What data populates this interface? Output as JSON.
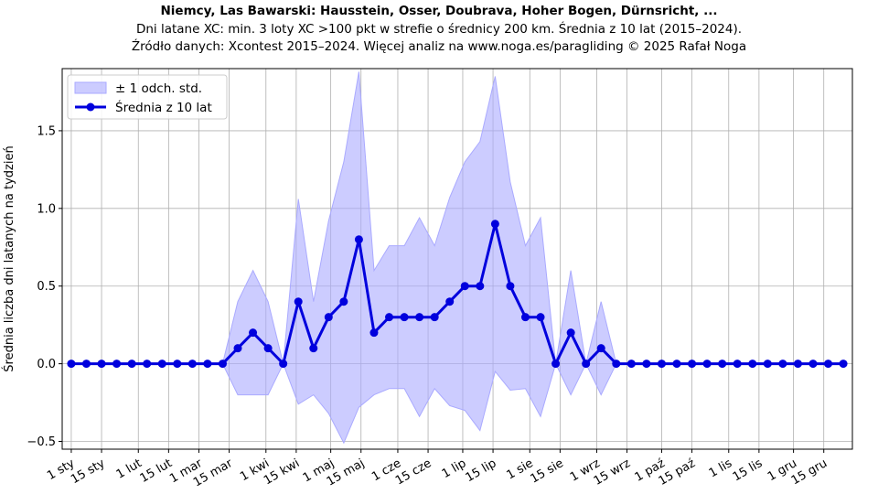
{
  "title_line1": "Niemcy, Las Bawarski: Hausstein, Osser, Doubrava, Hoher Bogen, Dürnsricht, ...",
  "title_line2": "Dni latane XC: min. 3 loty XC >100 pkt w strefie o średnicy 200 km. Średnia z 10 lat (2015–2024).",
  "title_line3": "Źródło danych: Xcontest 2015–2024. Więcej analiz na www.noga.es/paragliding © 2025 Rafał Noga",
  "colors": {
    "line": "#0000dd",
    "band": "#aaaaff",
    "grid": "#b0b0b0"
  },
  "chart_data": {
    "type": "line",
    "ylabel": "Średnia liczba dni latanych na tydzień",
    "xlabel": "",
    "x_unit": "week of year",
    "x_range": [
      1,
      52
    ],
    "ylim": [
      -0.55,
      1.9
    ],
    "yticks": [
      -0.5,
      0.0,
      0.5,
      1.0,
      1.5
    ],
    "ytick_labels": [
      "−0.5",
      "0.0",
      "0.5",
      "1.0",
      "1.5"
    ],
    "xtick_labels": [
      "1 sty",
      "15 sty",
      "1 lut",
      "15 lut",
      "1 mar",
      "15 mar",
      "1 kwi",
      "15 kwi",
      "1 maj",
      "15 maj",
      "1 cze",
      "15 cze",
      "1 lip",
      "15 lip",
      "1 sie",
      "15 sie",
      "1 wrz",
      "15 wrz",
      "1 paź",
      "15 paź",
      "1 lis",
      "15 lis",
      "1 gru",
      "15 gru"
    ],
    "xtick_weeks": [
      1,
      3,
      5.43,
      7.43,
      9.43,
      11.43,
      13.86,
      15.86,
      18.14,
      20.14,
      22.57,
      24.57,
      26.86,
      28.86,
      31.29,
      33.29,
      35.71,
      37.71,
      40.0,
      42.0,
      44.43,
      46.43,
      48.71,
      50.71
    ],
    "grid": true,
    "legend_position": "top-left",
    "series": [
      {
        "name": "Średnia z 10 lat",
        "x": [
          1,
          2,
          3,
          4,
          5,
          6,
          7,
          8,
          9,
          10,
          11,
          12,
          13,
          14,
          15,
          16,
          17,
          18,
          19,
          20,
          21,
          22,
          23,
          24,
          25,
          26,
          27,
          28,
          29,
          30,
          31,
          32,
          33,
          34,
          35,
          36,
          37,
          38,
          39,
          40,
          41,
          42,
          43,
          44,
          45,
          46,
          47,
          48,
          49,
          50,
          51,
          52
        ],
        "values": [
          0,
          0,
          0,
          0,
          0,
          0,
          0,
          0,
          0,
          0,
          0,
          0.1,
          0.2,
          0.1,
          0,
          0.4,
          0.1,
          0.3,
          0.4,
          0.8,
          0.2,
          0.3,
          0.3,
          0.3,
          0.3,
          0.4,
          0.5,
          0.5,
          0.9,
          0.5,
          0.3,
          0.3,
          0,
          0.2,
          0,
          0.1,
          0,
          0,
          0,
          0,
          0,
          0,
          0,
          0,
          0,
          0,
          0,
          0,
          0,
          0,
          0,
          0
        ]
      },
      {
        "name": "± 1 odch. std.",
        "x": [
          1,
          2,
          3,
          4,
          5,
          6,
          7,
          8,
          9,
          10,
          11,
          12,
          13,
          14,
          15,
          16,
          17,
          18,
          19,
          20,
          21,
          22,
          23,
          24,
          25,
          26,
          27,
          28,
          29,
          30,
          31,
          32,
          33,
          34,
          35,
          36,
          37,
          38,
          39,
          40,
          41,
          42,
          43,
          44,
          45,
          46,
          47,
          48,
          49,
          50,
          51,
          52
        ],
        "upper": [
          0,
          0,
          0,
          0,
          0,
          0,
          0,
          0,
          0,
          0,
          0,
          0.4,
          0.6,
          0.4,
          0,
          1.06,
          0.4,
          0.92,
          1.3,
          1.88,
          0.6,
          0.76,
          0.76,
          0.94,
          0.76,
          1.07,
          1.3,
          1.43,
          1.85,
          1.17,
          0.76,
          0.94,
          0,
          0.6,
          0,
          0.4,
          0,
          0,
          0,
          0,
          0,
          0,
          0,
          0,
          0,
          0,
          0,
          0,
          0,
          0,
          0,
          0
        ],
        "lower": [
          0,
          0,
          0,
          0,
          0,
          0,
          0,
          0,
          0,
          0,
          0,
          -0.2,
          -0.2,
          -0.2,
          0,
          -0.26,
          -0.2,
          -0.32,
          -0.51,
          -0.28,
          -0.2,
          -0.16,
          -0.16,
          -0.34,
          -0.16,
          -0.27,
          -0.3,
          -0.43,
          -0.05,
          -0.17,
          -0.16,
          -0.34,
          0,
          -0.2,
          0,
          -0.2,
          0,
          0,
          0,
          0,
          0,
          0,
          0,
          0,
          0,
          0,
          0,
          0,
          0,
          0,
          0,
          0
        ]
      }
    ]
  }
}
